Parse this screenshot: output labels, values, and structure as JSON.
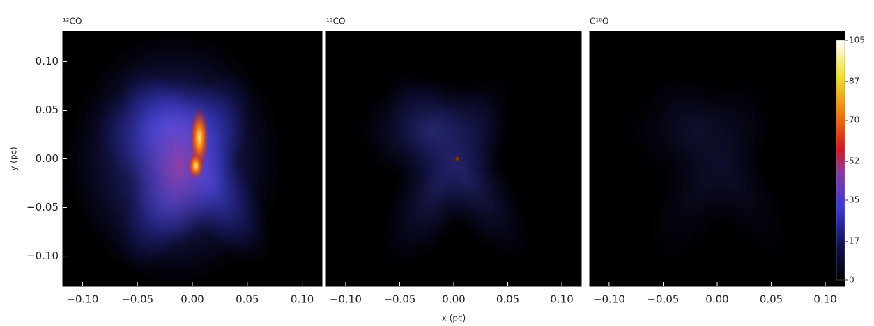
{
  "chart_data": [
    {
      "type": "heatmap",
      "title": "¹²CO",
      "ylabel": "y (pc)",
      "xlim": [
        -0.118,
        0.118
      ],
      "ylim": [
        -0.131,
        0.131
      ],
      "xticks": [
        {
          "value": -0.1,
          "label": "−0.10"
        },
        {
          "value": -0.05,
          "label": "−0.05"
        },
        {
          "value": 0,
          "label": "0.00"
        },
        {
          "value": 0.05,
          "label": "0.05"
        },
        {
          "value": 0.1,
          "label": "0.10"
        }
      ],
      "yticks": [
        {
          "value": -0.1,
          "label": "−0.10"
        },
        {
          "value": -0.05,
          "label": "−0.05"
        },
        {
          "value": 0,
          "label": "0.00"
        },
        {
          "value": 0.05,
          "label": "0.05"
        },
        {
          "value": 0.1,
          "label": "0.10"
        }
      ]
    },
    {
      "type": "heatmap",
      "title": "¹³CO",
      "xlabel": "x (pc)",
      "xlim": [
        -0.118,
        0.118
      ],
      "ylim": [
        -0.131,
        0.131
      ],
      "xticks": [
        {
          "value": -0.1,
          "label": "−0.10"
        },
        {
          "value": -0.05,
          "label": "−0.05"
        },
        {
          "value": 0,
          "label": "0.00"
        },
        {
          "value": 0.05,
          "label": "0.05"
        },
        {
          "value": 0.1,
          "label": "0.10"
        }
      ]
    },
    {
      "type": "heatmap",
      "title": "C¹⁸O",
      "xlim": [
        -0.118,
        0.118
      ],
      "ylim": [
        -0.131,
        0.131
      ],
      "xticks": [
        {
          "value": -0.1,
          "label": "−0.10"
        },
        {
          "value": -0.05,
          "label": "−0.05"
        },
        {
          "value": 0,
          "label": "0.00"
        },
        {
          "value": 0.05,
          "label": "0.05"
        },
        {
          "value": 0.1,
          "label": "0.10"
        }
      ],
      "colorbar": {
        "lim": [
          0,
          105
        ],
        "ticks": [
          0,
          17,
          35,
          52,
          70,
          87,
          105
        ]
      }
    }
  ]
}
